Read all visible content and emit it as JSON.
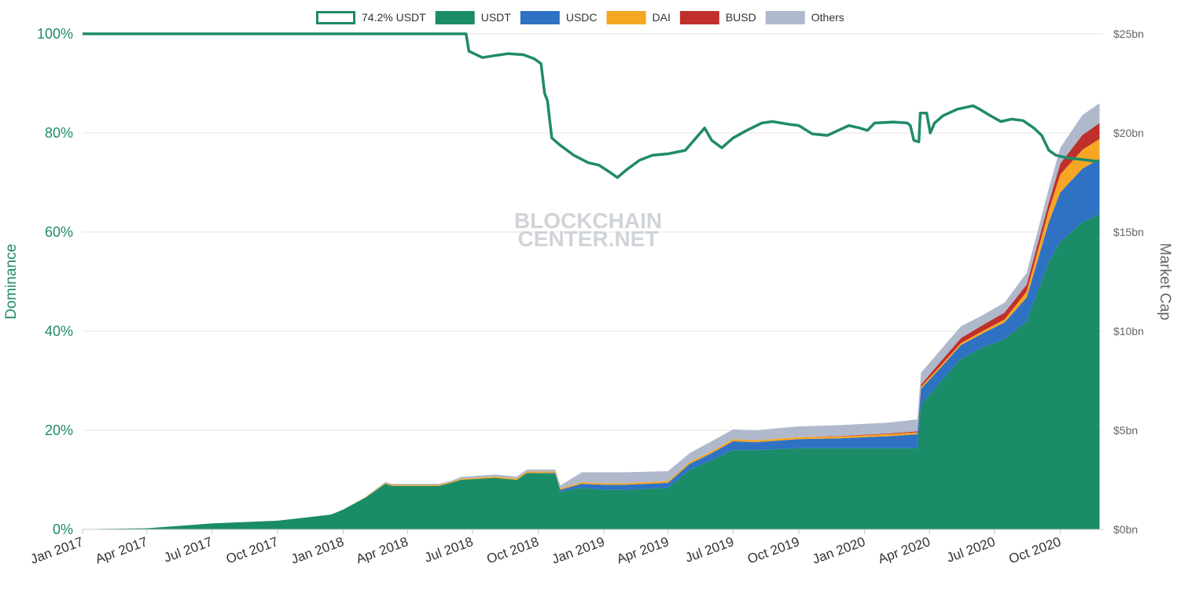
{
  "chart_data": {
    "type": "area",
    "stacked": true,
    "x_type": "date",
    "x_range": [
      "2017-01-01",
      "2020-11-30"
    ],
    "x_ticks": [
      "Jan 2017",
      "Apr 2017",
      "Jul 2017",
      "Oct 2017",
      "Jan 2018",
      "Apr 2018",
      "Jul 2018",
      "Oct 2018",
      "Jan 2019",
      "Apr 2019",
      "Jul 2019",
      "Oct 2019",
      "Jan 2020",
      "Apr 2020",
      "Jul 2020",
      "Oct 2020"
    ],
    "x_tick_dates": [
      "2017-01-01",
      "2017-04-01",
      "2017-07-01",
      "2017-10-01",
      "2018-01-01",
      "2018-04-01",
      "2018-07-01",
      "2018-10-01",
      "2019-01-01",
      "2019-04-01",
      "2019-07-01",
      "2019-10-01",
      "2020-01-01",
      "2020-04-01",
      "2020-07-01",
      "2020-10-01"
    ],
    "y_left": {
      "label": "Dominance",
      "ticks": [
        "0%",
        "20%",
        "40%",
        "60%",
        "80%",
        "100%"
      ],
      "tick_values": [
        0,
        20,
        40,
        60,
        80,
        100
      ],
      "range": [
        0,
        100
      ],
      "color": "#1f8a6c"
    },
    "y_right": {
      "label": "Market Cap",
      "ticks": [
        "$0bn",
        "$5bn",
        "$10bn",
        "$15bn",
        "$20bn",
        "$25bn"
      ],
      "tick_values": [
        0,
        5,
        10,
        15,
        20,
        25
      ],
      "range": [
        0,
        25
      ],
      "color": "#666666"
    },
    "grid": true,
    "legend": {
      "position": "top-center",
      "items": [
        {
          "name": "74.2% USDT",
          "type": "line",
          "color": "#1f8a6c"
        },
        {
          "name": "USDT",
          "type": "area",
          "color": "#1a8c67"
        },
        {
          "name": "USDC",
          "type": "area",
          "color": "#2f72c4"
        },
        {
          "name": "DAI",
          "type": "area",
          "color": "#f5a623"
        },
        {
          "name": "BUSD",
          "type": "area",
          "color": "#c0302b"
        },
        {
          "name": "Others",
          "type": "area",
          "color": "#b0b9cc"
        }
      ]
    },
    "watermark": [
      "BLOCKCHAIN",
      "CENTER.NET"
    ],
    "dates": [
      "2017-01-01",
      "2017-04-01",
      "2017-07-01",
      "2017-10-01",
      "2017-12-15",
      "2018-01-01",
      "2018-02-01",
      "2018-03-01",
      "2018-03-10",
      "2018-05-15",
      "2018-06-01",
      "2018-06-15",
      "2018-08-01",
      "2018-09-01",
      "2018-09-15",
      "2018-10-25",
      "2018-11-01",
      "2018-12-01",
      "2019-01-01",
      "2019-02-01",
      "2019-04-01",
      "2019-05-01",
      "2019-06-01",
      "2019-07-01",
      "2019-08-01",
      "2019-10-01",
      "2019-12-01",
      "2020-01-01",
      "2020-02-01",
      "2020-03-15",
      "2020-03-20",
      "2020-04-15",
      "2020-05-15",
      "2020-06-15",
      "2020-07-15",
      "2020-08-15",
      "2020-09-15",
      "2020-10-01",
      "2020-11-01",
      "2020-11-25"
    ],
    "series": [
      {
        "name": "USDT",
        "unit": "$bn",
        "values": [
          0.01,
          0.06,
          0.3,
          0.44,
          0.75,
          1.0,
          1.6,
          2.3,
          2.2,
          2.2,
          2.35,
          2.5,
          2.6,
          2.5,
          2.85,
          2.8,
          1.9,
          2.1,
          2.0,
          2.0,
          2.1,
          3.0,
          3.5,
          4.0,
          4.0,
          4.1,
          4.1,
          4.1,
          4.1,
          4.1,
          6.3,
          7.4,
          8.6,
          9.2,
          9.6,
          10.5,
          13.5,
          14.5,
          15.5,
          15.9
        ]
      },
      {
        "name": "USDC",
        "unit": "$bn",
        "values": [
          0,
          0,
          0,
          0,
          0,
          0,
          0,
          0,
          0,
          0,
          0,
          0,
          0,
          0,
          0,
          0.05,
          0.1,
          0.2,
          0.25,
          0.25,
          0.25,
          0.3,
          0.35,
          0.45,
          0.4,
          0.45,
          0.5,
          0.55,
          0.6,
          0.7,
          0.8,
          0.7,
          0.7,
          0.7,
          0.85,
          1.2,
          2.0,
          2.5,
          2.7,
          2.8
        ]
      },
      {
        "name": "DAI",
        "unit": "$bn",
        "values": [
          0,
          0,
          0,
          0,
          0,
          0,
          0.02,
          0.04,
          0.05,
          0.05,
          0.05,
          0.05,
          0.07,
          0.07,
          0.07,
          0.07,
          0.07,
          0.08,
          0.08,
          0.08,
          0.09,
          0.1,
          0.1,
          0.1,
          0.1,
          0.1,
          0.1,
          0.1,
          0.1,
          0.1,
          0.1,
          0.1,
          0.1,
          0.12,
          0.14,
          0.3,
          0.6,
          0.9,
          0.95,
          1.0
        ]
      },
      {
        "name": "BUSD",
        "unit": "$bn",
        "values": [
          0,
          0,
          0,
          0,
          0,
          0,
          0,
          0,
          0,
          0,
          0,
          0,
          0,
          0,
          0,
          0,
          0,
          0,
          0,
          0,
          0,
          0,
          0,
          0,
          0,
          0,
          0.02,
          0.03,
          0.03,
          0.05,
          0.1,
          0.2,
          0.25,
          0.3,
          0.35,
          0.35,
          0.4,
          0.55,
          0.75,
          0.8
        ]
      },
      {
        "name": "Others",
        "unit": "$bn",
        "values": [
          0,
          0,
          0,
          0,
          0,
          0,
          0.02,
          0.05,
          0.05,
          0.05,
          0.05,
          0.1,
          0.1,
          0.1,
          0.1,
          0.1,
          0.15,
          0.5,
          0.55,
          0.55,
          0.5,
          0.45,
          0.5,
          0.5,
          0.5,
          0.55,
          0.55,
          0.55,
          0.55,
          0.6,
          0.6,
          0.6,
          0.6,
          0.5,
          0.5,
          0.6,
          0.7,
          0.8,
          1.0,
          1.0
        ]
      }
    ],
    "dominance_line": {
      "name": "74.2% USDT",
      "unit": "%",
      "points": [
        [
          "2017-01-01",
          100
        ],
        [
          "2018-06-22",
          100
        ],
        [
          "2018-06-26",
          96.5
        ],
        [
          "2018-07-15",
          95.2
        ],
        [
          "2018-08-01",
          95.6
        ],
        [
          "2018-08-20",
          96.0
        ],
        [
          "2018-09-10",
          95.8
        ],
        [
          "2018-09-25",
          95.0
        ],
        [
          "2018-10-05",
          94.0
        ],
        [
          "2018-10-10",
          88.0
        ],
        [
          "2018-10-14",
          86.5
        ],
        [
          "2018-10-20",
          79.0
        ],
        [
          "2018-11-01",
          77.5
        ],
        [
          "2018-11-20",
          75.5
        ],
        [
          "2018-12-10",
          74.0
        ],
        [
          "2018-12-25",
          73.5
        ],
        [
          "2019-01-10",
          72.0
        ],
        [
          "2019-01-20",
          71.0
        ],
        [
          "2019-02-01",
          72.5
        ],
        [
          "2019-02-20",
          74.5
        ],
        [
          "2019-03-10",
          75.5
        ],
        [
          "2019-04-01",
          75.8
        ],
        [
          "2019-04-25",
          76.5
        ],
        [
          "2019-05-10",
          79.0
        ],
        [
          "2019-05-22",
          81.0
        ],
        [
          "2019-06-01",
          78.5
        ],
        [
          "2019-06-15",
          77.0
        ],
        [
          "2019-07-01",
          79.0
        ],
        [
          "2019-07-20",
          80.5
        ],
        [
          "2019-08-10",
          82.0
        ],
        [
          "2019-08-25",
          82.3
        ],
        [
          "2019-09-15",
          81.8
        ],
        [
          "2019-10-01",
          81.5
        ],
        [
          "2019-10-20",
          79.8
        ],
        [
          "2019-11-10",
          79.5
        ],
        [
          "2019-11-25",
          80.5
        ],
        [
          "2019-12-10",
          81.5
        ],
        [
          "2019-12-25",
          81.0
        ],
        [
          "2020-01-05",
          80.5
        ],
        [
          "2020-01-15",
          82.0
        ],
        [
          "2020-02-10",
          82.2
        ],
        [
          "2020-03-01",
          82.0
        ],
        [
          "2020-03-05",
          81.5
        ],
        [
          "2020-03-10",
          78.5
        ],
        [
          "2020-03-17",
          78.2
        ],
        [
          "2020-03-19",
          84.0
        ],
        [
          "2020-03-28",
          84.0
        ],
        [
          "2020-04-02",
          80.0
        ],
        [
          "2020-04-08",
          82.0
        ],
        [
          "2020-04-20",
          83.5
        ],
        [
          "2020-05-10",
          84.8
        ],
        [
          "2020-06-01",
          85.5
        ],
        [
          "2020-06-10",
          84.8
        ],
        [
          "2020-06-25",
          83.5
        ],
        [
          "2020-07-10",
          82.3
        ],
        [
          "2020-07-25",
          82.8
        ],
        [
          "2020-08-10",
          82.5
        ],
        [
          "2020-08-25",
          81.0
        ],
        [
          "2020-09-05",
          79.5
        ],
        [
          "2020-09-15",
          76.5
        ],
        [
          "2020-09-25",
          75.5
        ],
        [
          "2020-10-10",
          75.0
        ],
        [
          "2020-11-25",
          74.2
        ]
      ],
      "color": "#1f8a6c"
    }
  }
}
